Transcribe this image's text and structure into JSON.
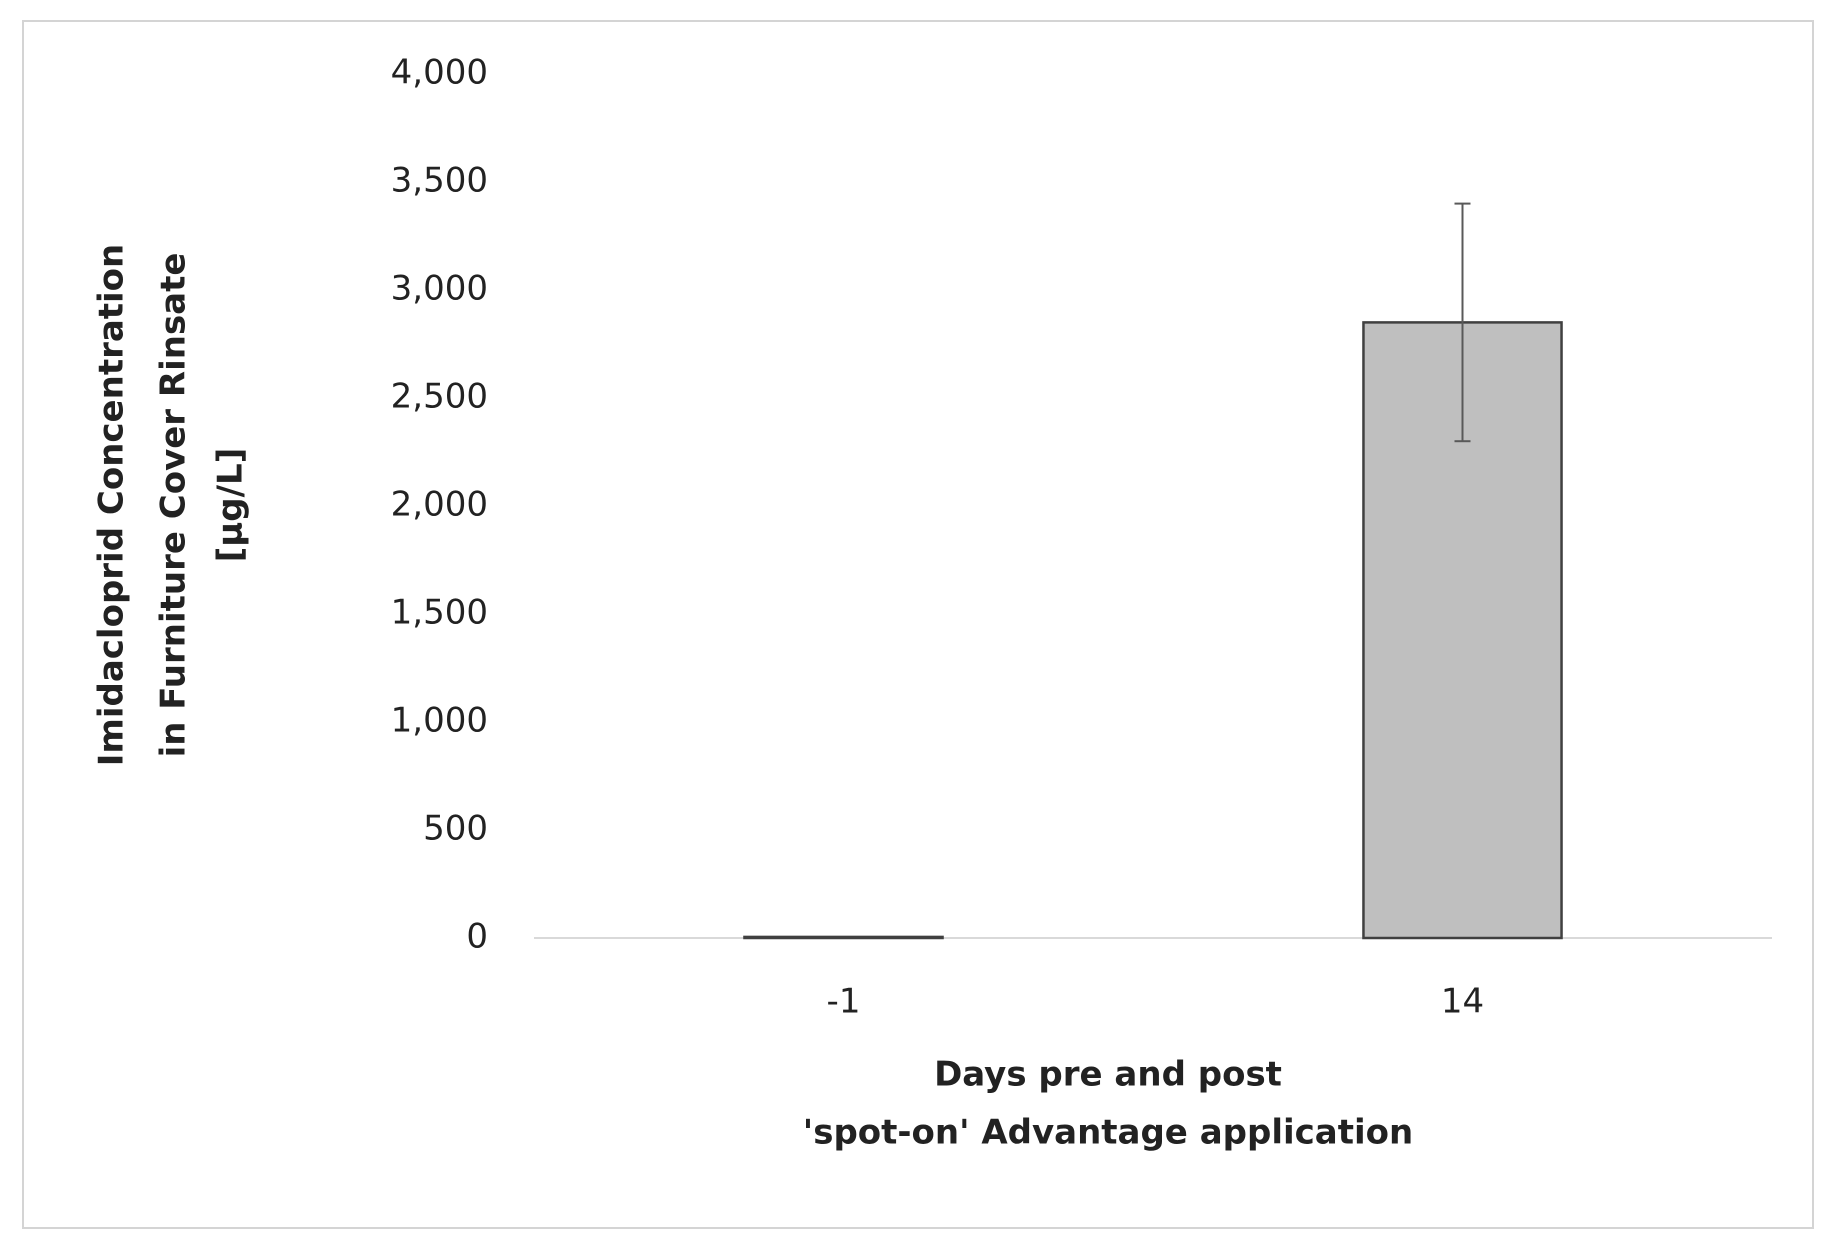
{
  "chart_data": {
    "type": "bar",
    "ylabel": [
      "Imidacloprid Concentration",
      "in Furniture Cover Rinsate",
      "[µg/L]"
    ],
    "xlabel": [
      "Days pre and post",
      "'spot-on' Advantage application"
    ],
    "categories": [
      "-1",
      "14"
    ],
    "values": [
      5,
      2850
    ],
    "errors": [
      null,
      550
    ],
    "color": "#bfbfbf",
    "ylim": [
      0,
      4000
    ],
    "yticks": [
      0,
      500,
      {
        "value": 1000,
        "label": "1,000"
      },
      {
        "value": 1500,
        "label": "1,500"
      },
      {
        "value": 2000,
        "label": "2,000"
      },
      {
        "value": 2500,
        "label": "2,500"
      },
      {
        "value": 3000,
        "label": "3,000"
      },
      {
        "value": 3500,
        "label": "3,500"
      },
      {
        "value": 4000,
        "label": "4,000"
      }
    ],
    "grid": false
  }
}
